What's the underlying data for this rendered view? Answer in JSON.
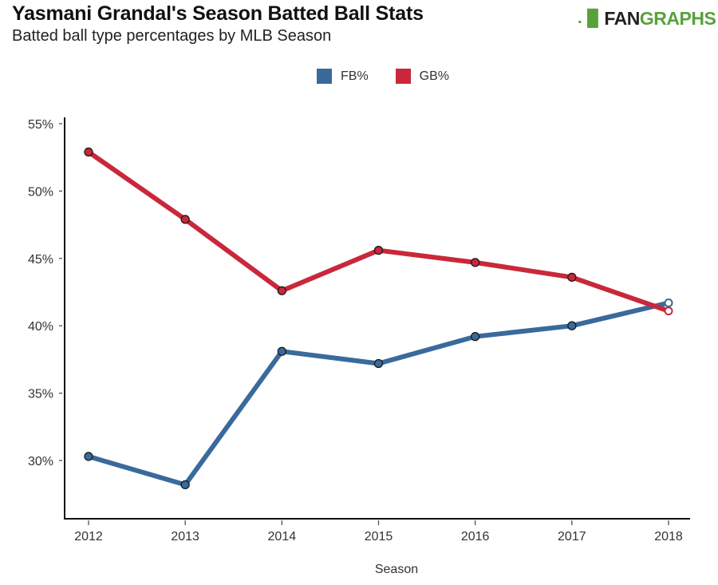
{
  "header": {
    "title": "Yasmani Grandal's Season Batted Ball Stats",
    "subtitle": "Batted ball type percentages by MLB Season",
    "logo": {
      "mark": ".▐▌",
      "fan": "FAN",
      "graphs": "GRAPHS"
    }
  },
  "colors": {
    "fb": "#3a6a9c",
    "gb": "#c9283a",
    "brand": "#59a13b"
  },
  "chart_data": {
    "type": "line",
    "title": "Yasmani Grandal's Season Batted Ball Stats",
    "subtitle": "Batted ball type percentages by MLB Season",
    "xlabel": "Season",
    "ylabel": "",
    "x": [
      2012,
      2013,
      2014,
      2015,
      2016,
      2017,
      2018
    ],
    "x_tick_labels": [
      "2012",
      "2013",
      "2014",
      "2015",
      "2016",
      "2017",
      "2018"
    ],
    "y_ticks": [
      30,
      35,
      40,
      45,
      50,
      55
    ],
    "y_tick_labels": [
      "30%",
      "35%",
      "40%",
      "45%",
      "50%",
      "55%"
    ],
    "ylim": [
      26.0,
      55.5
    ],
    "grid": false,
    "legend": {
      "placement": "top-center",
      "entries": [
        "FB%",
        "GB%"
      ]
    },
    "series": [
      {
        "name": "FB%",
        "color": "#3a6a9c",
        "values": [
          30.3,
          28.2,
          38.1,
          37.2,
          39.2,
          40.0,
          41.7
        ],
        "last_point_hollow": true
      },
      {
        "name": "GB%",
        "color": "#c9283a",
        "values": [
          52.9,
          47.9,
          42.6,
          45.6,
          44.7,
          43.6,
          41.1
        ],
        "last_point_hollow": true
      }
    ]
  }
}
